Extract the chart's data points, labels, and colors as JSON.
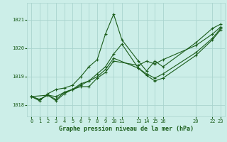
{
  "bg_color": "#cceee8",
  "grid_color": "#aad4ce",
  "line_color": "#1a5c1a",
  "title": "Graphe pression niveau de la mer (hPa)",
  "ylabel_values": [
    1018,
    1019,
    1020,
    1021
  ],
  "xticks": [
    0,
    1,
    2,
    3,
    4,
    5,
    6,
    7,
    8,
    9,
    10,
    11,
    13,
    14,
    15,
    16,
    20,
    22,
    23
  ],
  "xlim": [
    -0.5,
    23.5
  ],
  "ylim": [
    1017.6,
    1021.6
  ],
  "series": [
    {
      "x": [
        0,
        1,
        2,
        3,
        4,
        5,
        6,
        7,
        8,
        9,
        10,
        11,
        13,
        14,
        15,
        16,
        20,
        22,
        23
      ],
      "y": [
        1018.3,
        1018.15,
        1018.4,
        1018.55,
        1018.6,
        1018.7,
        1019.0,
        1019.35,
        1019.6,
        1020.5,
        1021.2,
        1020.3,
        1019.55,
        1019.2,
        1019.55,
        1019.35,
        1020.2,
        1020.7,
        1020.85
      ]
    },
    {
      "x": [
        0,
        1,
        2,
        3,
        4,
        5,
        6,
        7,
        8,
        9,
        10,
        11,
        13,
        14,
        15,
        16,
        20,
        22,
        23
      ],
      "y": [
        1018.3,
        1018.2,
        1018.35,
        1018.3,
        1018.45,
        1018.55,
        1018.7,
        1018.85,
        1019.1,
        1019.35,
        1019.8,
        1020.15,
        1019.3,
        1019.05,
        1018.85,
        1018.95,
        1019.75,
        1020.3,
        1020.65
      ]
    },
    {
      "x": [
        0,
        1,
        2,
        3,
        4,
        5,
        6,
        7,
        8,
        9,
        10,
        13,
        14,
        15,
        16,
        20,
        22,
        23
      ],
      "y": [
        1018.3,
        1018.2,
        1018.35,
        1018.15,
        1018.4,
        1018.55,
        1018.65,
        1018.65,
        1018.95,
        1019.15,
        1019.55,
        1019.4,
        1019.55,
        1019.45,
        1019.6,
        1020.1,
        1020.5,
        1020.75
      ]
    },
    {
      "x": [
        0,
        2,
        3,
        4,
        5,
        6,
        7,
        8,
        9,
        10,
        13,
        14,
        15,
        16,
        20,
        22,
        23
      ],
      "y": [
        1018.3,
        1018.35,
        1018.2,
        1018.45,
        1018.55,
        1018.75,
        1018.85,
        1019.0,
        1019.25,
        1019.65,
        1019.3,
        1019.1,
        1018.95,
        1019.1,
        1019.85,
        1020.35,
        1020.7
      ]
    }
  ]
}
